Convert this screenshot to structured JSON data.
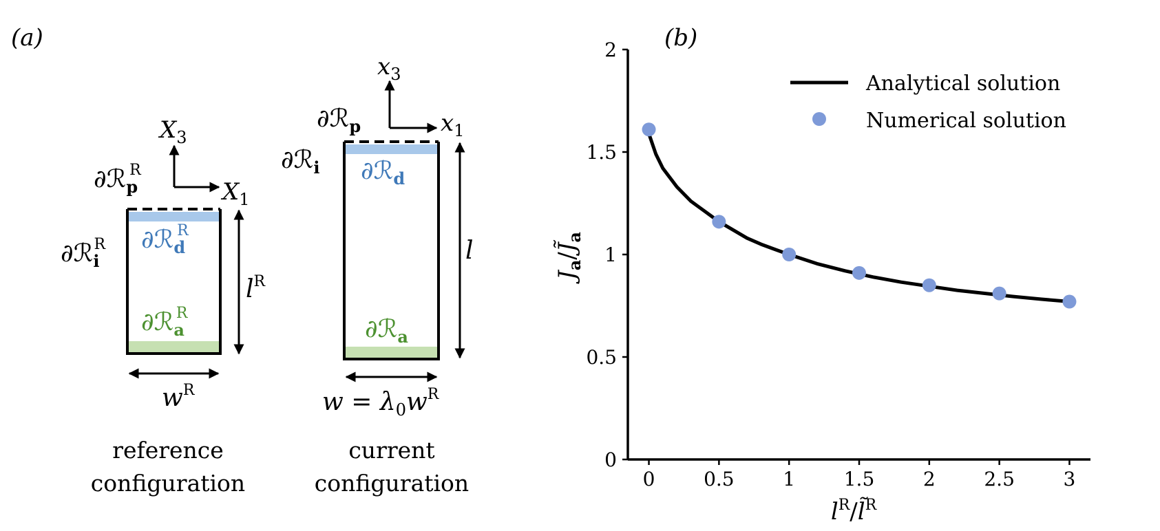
{
  "panel_a": {
    "label": "(a)",
    "reference": {
      "axis_vertical": "X",
      "axis_vertical_sub": "3",
      "axis_horizontal": "X",
      "axis_horizontal_sub": "1",
      "boundary_p": "∂ℛ",
      "boundary_p_sub": "p",
      "boundary_p_sup": "R",
      "boundary_i": "∂ℛ",
      "boundary_i_sub": "i",
      "boundary_i_sup": "R",
      "boundary_d": "∂ℛ",
      "boundary_d_sub": "d",
      "boundary_d_sup": "R",
      "boundary_a": "∂ℛ",
      "boundary_a_sub": "a",
      "boundary_a_sup": "R",
      "length": "l",
      "length_sup": "R",
      "width": "w",
      "width_sup": "R",
      "caption_line1": "reference",
      "caption_line2": "configuration"
    },
    "current": {
      "axis_vertical": "x",
      "axis_vertical_sub": "3",
      "axis_horizontal": "x",
      "axis_horizontal_sub": "1",
      "boundary_p": "∂ℛ",
      "boundary_p_sub": "p",
      "boundary_i": "∂ℛ",
      "boundary_i_sub": "i",
      "boundary_d": "∂ℛ",
      "boundary_d_sub": "d",
      "boundary_a": "∂ℛ",
      "boundary_a_sub": "a",
      "length": "l",
      "width_eq": "w = λ",
      "width_eq_sub": "0",
      "width_eq_rest": "w",
      "width_eq_sup": "R",
      "caption_line1": "current",
      "caption_line2": "configuration"
    },
    "colors": {
      "blue_band": "#a8c8ea",
      "green_band": "#c6e0b2",
      "blue_text": "#3f79b8",
      "green_text": "#4c9130"
    }
  },
  "chart_data": {
    "type": "line",
    "panel_label": "(b)",
    "xlabel": "l^R / l̃^R",
    "ylabel": "J_a / J̃_a",
    "xlim": [
      -0.15,
      3.15
    ],
    "ylim": [
      0,
      2
    ],
    "xticks": [
      "0",
      "0.5",
      "1",
      "1.5",
      "2",
      "2.5",
      "3"
    ],
    "xtick_values": [
      0,
      0.5,
      1,
      1.5,
      2,
      2.5,
      3
    ],
    "yticks": [
      "0",
      "0.5",
      "1",
      "1.5",
      "2"
    ],
    "ytick_values": [
      0,
      0.5,
      1,
      1.5,
      2
    ],
    "grid": false,
    "legend_placement": "top-right",
    "series": [
      {
        "name": "Analytical solution",
        "kind": "line",
        "color": "#000000",
        "x": [
          0,
          0.05,
          0.1,
          0.2,
          0.3,
          0.4,
          0.5,
          0.6,
          0.7,
          0.8,
          0.9,
          1.0,
          1.2,
          1.4,
          1.6,
          1.8,
          2.0,
          2.2,
          2.4,
          2.6,
          2.8,
          3.0
        ],
        "y": [
          1.59,
          1.49,
          1.42,
          1.33,
          1.26,
          1.21,
          1.16,
          1.12,
          1.08,
          1.05,
          1.025,
          1.0,
          0.955,
          0.92,
          0.89,
          0.865,
          0.845,
          0.825,
          0.81,
          0.795,
          0.782,
          0.77
        ]
      },
      {
        "name": "Numerical solution",
        "kind": "scatter",
        "color": "#7e9ad8",
        "x": [
          0,
          0.5,
          1,
          1.5,
          2,
          2.5,
          3
        ],
        "y": [
          1.61,
          1.16,
          1.0,
          0.91,
          0.85,
          0.81,
          0.77
        ]
      }
    ]
  }
}
